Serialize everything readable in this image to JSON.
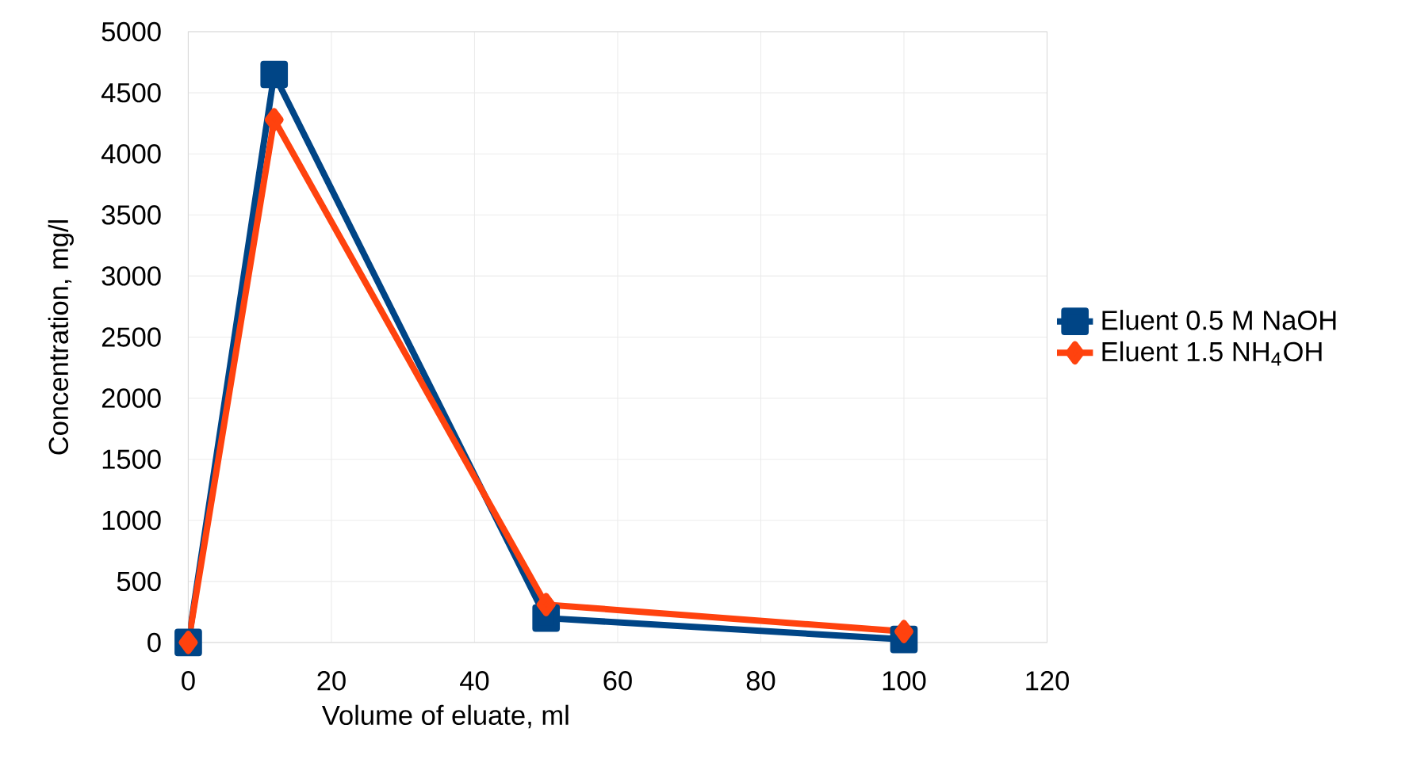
{
  "chart_data": {
    "type": "line",
    "xlabel": "Volume of eluate, ml",
    "ylabel": "Concentration, mg/l",
    "x": [
      0,
      12,
      50,
      100
    ],
    "series": [
      {
        "name": "Eluent 0.5 M NaOH",
        "color": "#004586",
        "marker": "square",
        "values": [
          0,
          4650,
          200,
          25
        ]
      },
      {
        "name": "Eluent 1.5 NH$_{4}$OH",
        "color": "#ff420e",
        "marker": "diamond",
        "values": [
          0,
          4280,
          310,
          90
        ]
      }
    ],
    "xlim": [
      0,
      120
    ],
    "xticks": [
      0,
      20,
      40,
      60,
      80,
      100,
      120
    ],
    "ylim": [
      0,
      5000
    ],
    "yticks": [
      0,
      500,
      1000,
      1500,
      2000,
      2500,
      3000,
      3500,
      4000,
      4500,
      5000
    ],
    "grid": true,
    "legend": "right",
    "line_style": "solid"
  }
}
